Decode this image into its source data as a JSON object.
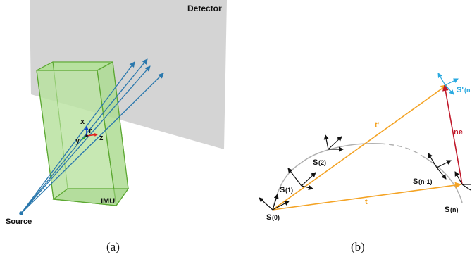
{
  "panel_a": {
    "caption": "(a)",
    "detector_label": "Detector",
    "imu_label": "IMU",
    "source_label": "Source",
    "axis_x_label": "x",
    "axis_y_label": "y",
    "axis_z_label": "z",
    "axis_r_label": "r",
    "colors": {
      "detector": "#cfcfcf",
      "imu_fill": "#b9e3a0",
      "imu_edge": "#5ca832",
      "ray": "#2a78ad"
    }
  },
  "panel_b": {
    "caption": "(b)",
    "s0": "S",
    "s0_sub": "(0)",
    "s1": "S",
    "s1_sub": "(1)",
    "s2": "S",
    "s2_sub": "(2)",
    "sn1": "S",
    "sn1_sub": "(n-1)",
    "sn": "S",
    "sn_sub": "(n)",
    "sprime": "S'",
    "sprime_sub": "(n",
    "t_label": "t",
    "tprime_label": "t'",
    "ne_label": "ne",
    "colors": {
      "orange": "#f4a324",
      "red": "#c0182a",
      "cyan": "#29a9e0",
      "arc": "#b0b0b0"
    }
  }
}
